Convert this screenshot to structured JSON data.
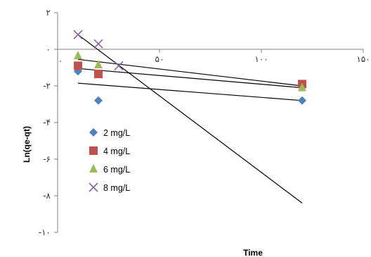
{
  "chart_data": {
    "type": "scatter",
    "xlabel": "Time",
    "ylabel": "Ln(qe-qt)",
    "xlim": [
      0,
      150
    ],
    "ylim": [
      -10,
      2
    ],
    "x_ticks": [
      {
        "value": 0,
        "label": "."
      },
      {
        "value": 50,
        "label": "۵۰"
      },
      {
        "value": 100,
        "label": "۱۰۰"
      },
      {
        "value": 150,
        "label": "۱۵۰"
      }
    ],
    "y_ticks": [
      {
        "value": 2,
        "label": "۲"
      },
      {
        "value": 0,
        "label": "۰"
      },
      {
        "value": -2,
        "label": "-۲"
      },
      {
        "value": -4,
        "label": "-۴"
      },
      {
        "value": -6,
        "label": "-۶"
      },
      {
        "value": -8,
        "label": "-۸"
      },
      {
        "value": -10,
        "label": "-۱۰"
      }
    ],
    "legend_position": "left-inside",
    "series": [
      {
        "name": "2 mg/L",
        "marker": "diamond",
        "color": "#4f81bd",
        "points": [
          [
            10,
            -1.2
          ],
          [
            20,
            -2.8
          ],
          [
            120,
            -2.8
          ]
        ],
        "trendline": [
          [
            10,
            -1.85
          ],
          [
            120,
            -2.8
          ]
        ]
      },
      {
        "name": "4 mg/L",
        "marker": "square",
        "color": "#c0504d",
        "points": [
          [
            10,
            -0.9
          ],
          [
            20,
            -1.35
          ],
          [
            120,
            -1.9
          ]
        ],
        "trendline": [
          [
            10,
            -1.05
          ],
          [
            120,
            -2.1
          ]
        ]
      },
      {
        "name": "6 mg/L",
        "marker": "triangle",
        "color": "#9bbb59",
        "points": [
          [
            10,
            -0.35
          ],
          [
            20,
            -0.85
          ],
          [
            120,
            -2.1
          ]
        ],
        "trendline": [
          [
            10,
            -0.55
          ],
          [
            120,
            -2.0
          ]
        ]
      },
      {
        "name": "8 mg/L",
        "marker": "x",
        "color": "#8064a2",
        "points": [
          [
            10,
            0.8
          ],
          [
            20,
            0.3
          ],
          [
            30,
            -0.9
          ]
        ],
        "trendline": [
          [
            10,
            0.8
          ],
          [
            120,
            -8.4
          ]
        ]
      }
    ]
  }
}
